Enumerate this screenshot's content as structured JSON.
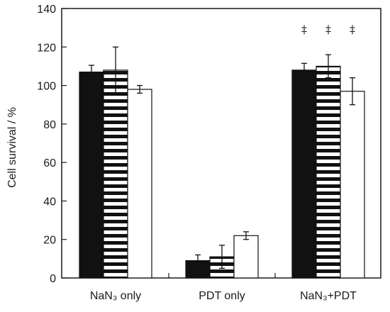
{
  "chart_data": {
    "type": "bar",
    "title": "",
    "xlabel": "",
    "ylabel": "Cell survival / %",
    "ylim": [
      0,
      140
    ],
    "yticks": [
      0,
      20,
      40,
      60,
      80,
      100,
      120,
      140
    ],
    "categories": [
      "NaN₃ only",
      "PDT only",
      "NaN₃+PDT"
    ],
    "series": [
      {
        "fill": "solid-black",
        "values": [
          107,
          9,
          108
        ],
        "errors": [
          3.5,
          3,
          3.5
        ]
      },
      {
        "fill": "horizontal-stripes",
        "values": [
          108,
          11,
          110
        ],
        "errors": [
          12,
          6,
          6
        ]
      },
      {
        "fill": "white",
        "values": [
          98,
          22,
          97
        ],
        "errors": [
          2,
          2,
          7
        ]
      }
    ],
    "annotations": [
      {
        "category": 2,
        "series": 0,
        "text": "‡"
      },
      {
        "category": 2,
        "series": 1,
        "text": "‡"
      },
      {
        "category": 2,
        "series": 2,
        "text": "‡"
      }
    ],
    "grid": false,
    "legend": "none",
    "colors": {
      "bar_dark": "#111111",
      "bar_light": "#ffffff",
      "axis": "#1a1a1a"
    }
  }
}
